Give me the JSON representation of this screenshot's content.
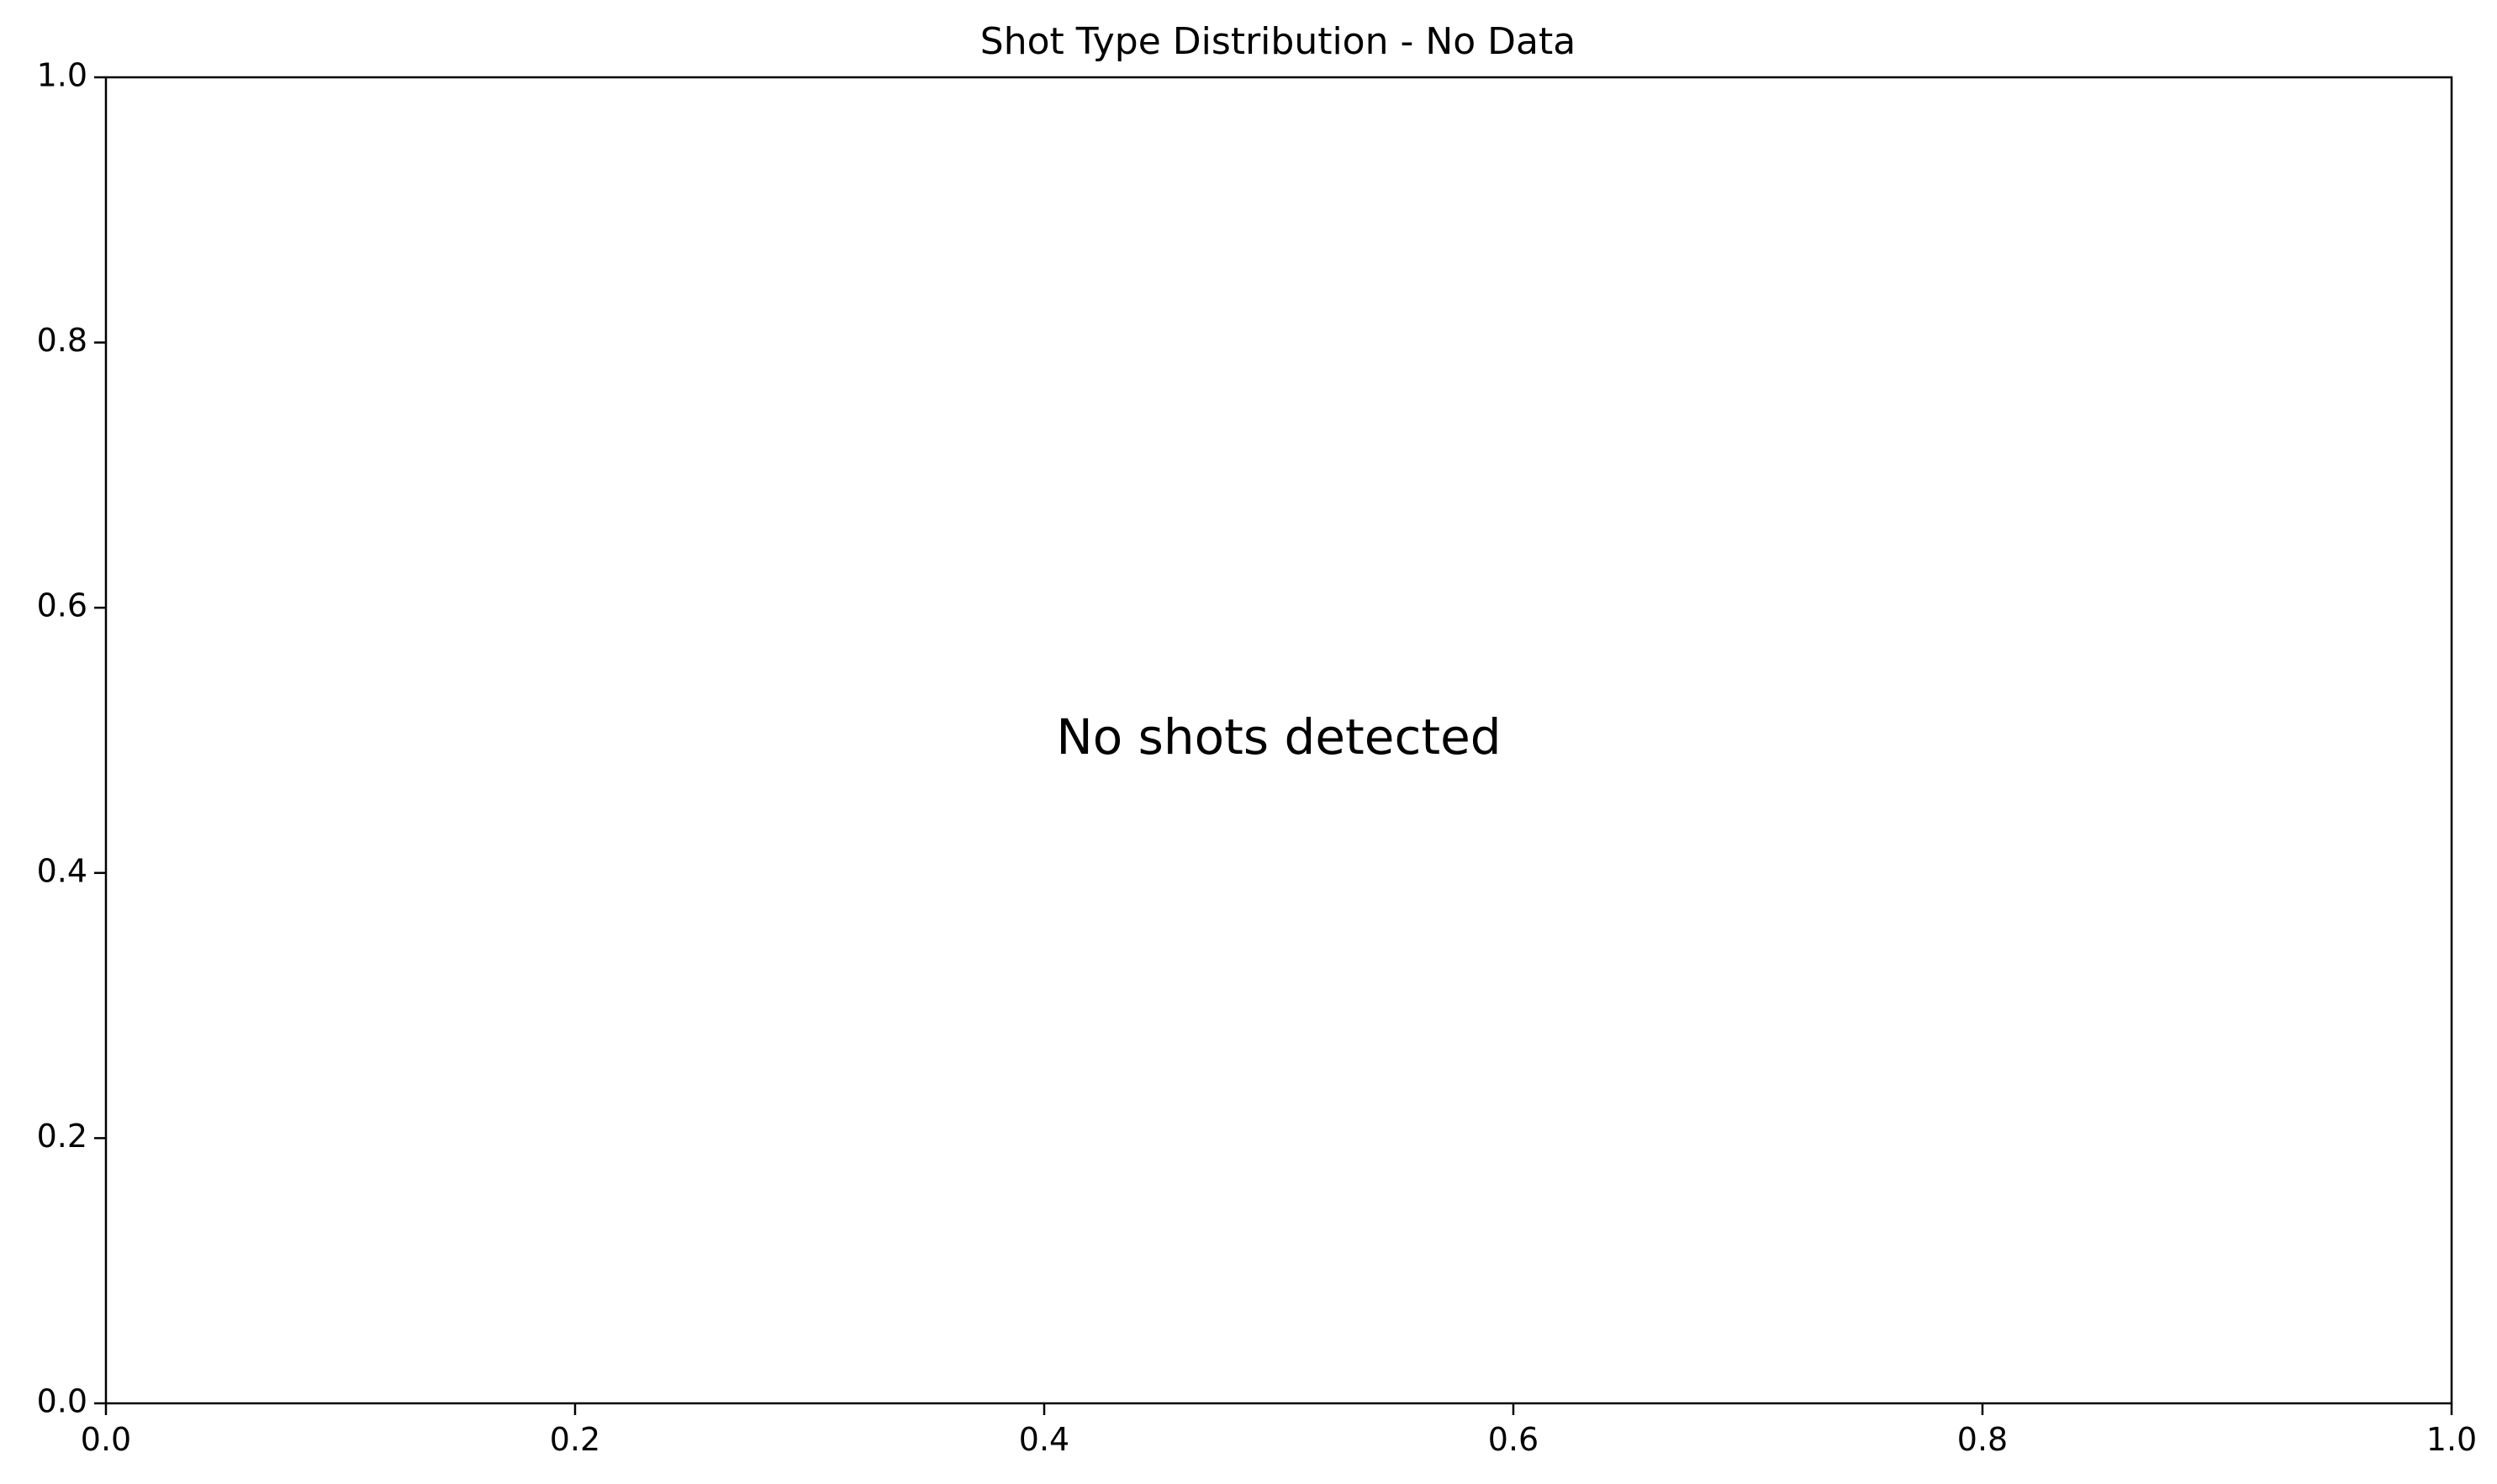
{
  "chart_data": {
    "type": "bar",
    "title": "Shot Type Distribution - No Data",
    "xlabel": "",
    "ylabel": "",
    "categories": [],
    "values": [],
    "xlim": [
      0.0,
      1.0
    ],
    "ylim": [
      0.0,
      1.0
    ],
    "x_ticks": [
      "0.0",
      "0.2",
      "0.4",
      "0.6",
      "0.8",
      "1.0"
    ],
    "y_ticks": [
      "0.0",
      "0.2",
      "0.4",
      "0.6",
      "0.8",
      "1.0"
    ],
    "grid": false,
    "legend": "none",
    "annotation": {
      "text": "No shots detected",
      "x": 0.5,
      "y": 0.5
    }
  }
}
